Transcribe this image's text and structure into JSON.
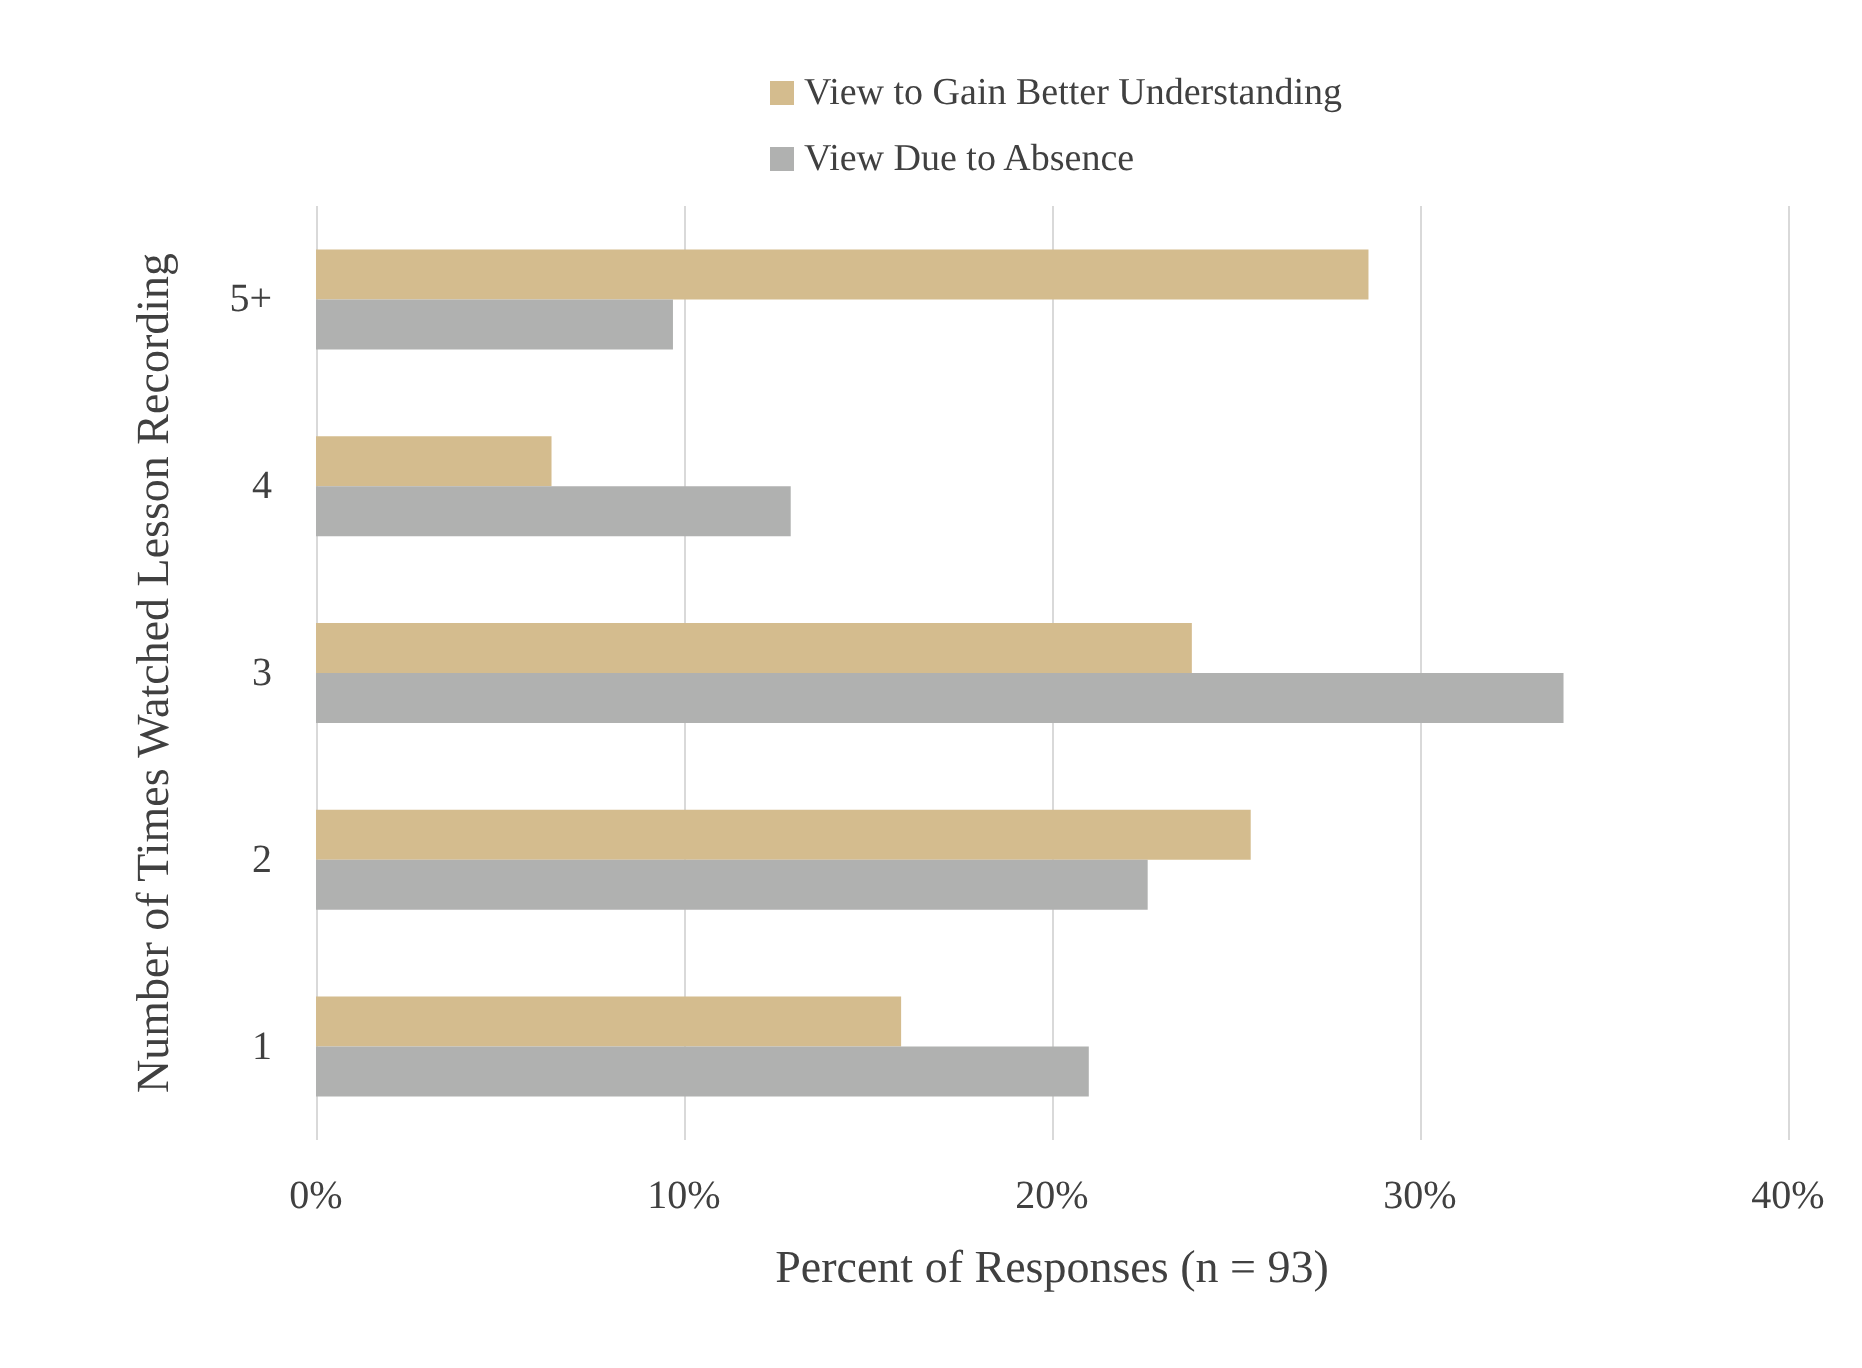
{
  "chart_data": {
    "type": "bar",
    "orientation": "horizontal",
    "xlabel": "Percent of Responses (n = 93)",
    "ylabel": "Number of Times Watched Lesson Recording",
    "categories": [
      "5+",
      "4",
      "3",
      "2",
      "1"
    ],
    "series": [
      {
        "name": "View to Gain Better Understanding",
        "color": "#d4bc8e",
        "values": [
          28.6,
          6.4,
          23.8,
          25.4,
          15.9
        ]
      },
      {
        "name": "View Due to Absence",
        "color": "#b0b1b0",
        "values": [
          9.7,
          12.9,
          33.9,
          22.6,
          21.0
        ]
      }
    ],
    "xlim": [
      0,
      40
    ],
    "xticks": [
      {
        "value": 0,
        "label": "0%"
      },
      {
        "value": 10,
        "label": "10%"
      },
      {
        "value": 20,
        "label": "20%"
      },
      {
        "value": 30,
        "label": "30%"
      },
      {
        "value": 40,
        "label": "40%"
      }
    ],
    "grid": "x",
    "legend": "top"
  }
}
